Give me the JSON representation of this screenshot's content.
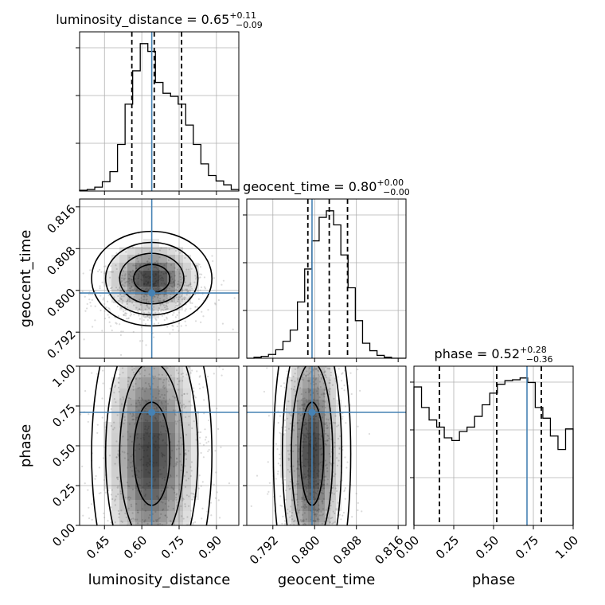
{
  "chart_data": {
    "type": "corner",
    "parameters": [
      {
        "name": "luminosity_distance",
        "xlabel": "luminosity_distance",
        "range": [
          0.35,
          0.99
        ],
        "ticks": [
          0.45,
          0.6,
          0.75,
          0.9
        ],
        "tick_labels": [
          "0.45",
          "0.60",
          "0.75",
          "0.90"
        ],
        "title": {
          "prefix": "luminosity_distance = 0.65",
          "plus": "+0.11",
          "minus": "−0.09"
        },
        "quantiles": [
          0.56,
          0.65,
          0.76
        ],
        "truth": 0.64,
        "hist_counts": [
          1,
          2,
          5,
          12,
          25,
          60,
          112,
          155,
          190,
          180,
          140,
          126,
          122,
          112,
          85,
          60,
          35,
          20,
          13,
          8,
          2
        ]
      },
      {
        "name": "geocent_time",
        "xlabel": "geocent_time",
        "ylabel": "geocent_time",
        "range": [
          0.787,
          0.8175
        ],
        "ticks": [
          0.792,
          0.8,
          0.808,
          0.816
        ],
        "tick_labels": [
          "0.792",
          "0.800",
          "0.808",
          "0.816"
        ],
        "title": {
          "prefix": "geocent_time = 0.80",
          "plus": "+0.00",
          "minus": "−0.00"
        },
        "quantiles": [
          0.7987,
          0.8028,
          0.8063
        ],
        "truth": 0.7995,
        "hist_counts": [
          0,
          1,
          2,
          4,
          9,
          18,
          30,
          60,
          95,
          125,
          150,
          157,
          142,
          110,
          75,
          40,
          16,
          8,
          3,
          1,
          0,
          0
        ]
      },
      {
        "name": "phase",
        "xlabel": "phase",
        "ylabel": "phase",
        "range": [
          0.0,
          1.0
        ],
        "ticks": [
          0.0,
          0.25,
          0.5,
          0.75,
          1.0
        ],
        "tick_labels": [
          "0.00",
          "0.25",
          "0.50",
          "0.75",
          "1.00"
        ],
        "title": {
          "prefix": "phase = 0.52",
          "plus": "+0.28",
          "minus": "−0.36"
        },
        "quantiles": [
          0.16,
          0.52,
          0.8
        ],
        "truth": 0.71,
        "hist_counts": [
          155,
          132,
          118,
          110,
          98,
          95,
          105,
          110,
          122,
          135,
          148,
          158,
          162,
          163,
          165,
          160,
          132,
          120,
          100,
          85,
          108
        ]
      }
    ],
    "pairs": [
      {
        "x": "luminosity_distance",
        "y": "geocent_time",
        "truth": [
          0.64,
          0.7995
        ]
      },
      {
        "x": "luminosity_distance",
        "y": "phase",
        "truth": [
          0.64,
          0.71
        ]
      },
      {
        "x": "geocent_time",
        "y": "phase",
        "truth": [
          0.7995,
          0.71
        ]
      }
    ],
    "grid": true,
    "colors": {
      "hist": "#000000",
      "quantile": "#000000",
      "truth": "#4682b4",
      "density": "#000000",
      "scatter": "#999999",
      "grid": "#b0b0b0"
    }
  }
}
